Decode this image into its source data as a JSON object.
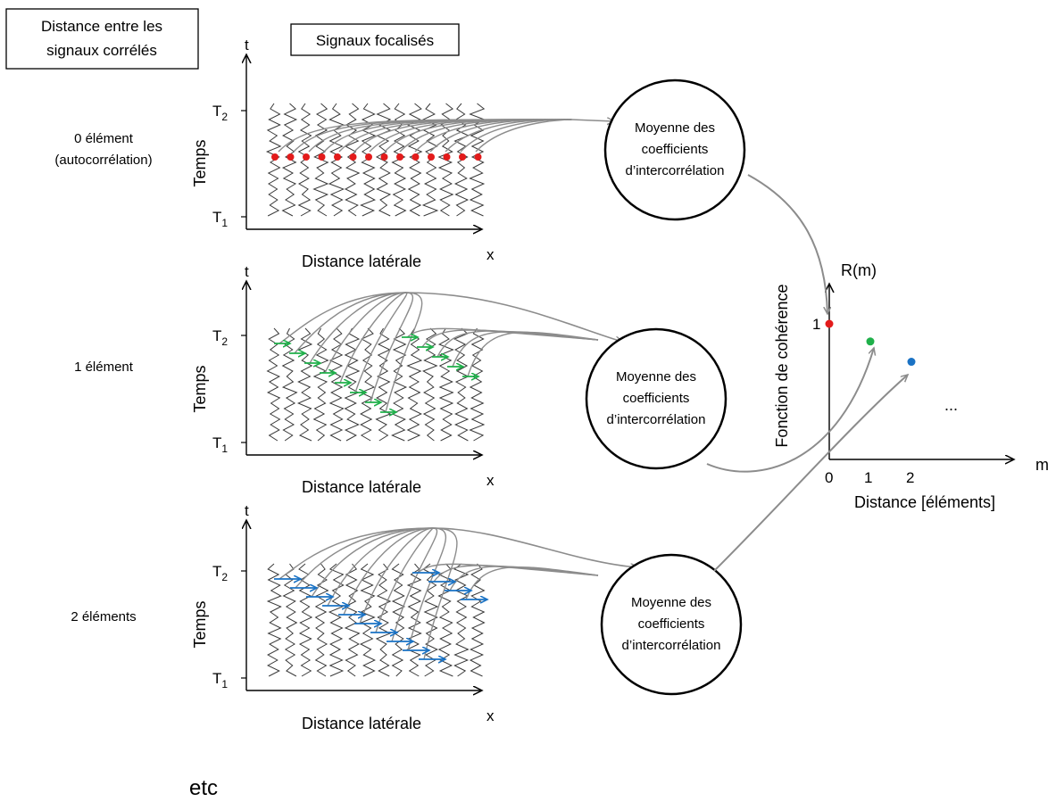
{
  "corner_box": {
    "line1": "Distance entre les",
    "line2": "signaux corrélés"
  },
  "focused_box": "Signaux focalisés",
  "colors": {
    "dot0": "#e31b1b",
    "dot1": "#1fb04a",
    "dot2": "#1a72c4",
    "curve": "#8c8c8c",
    "trace": "#3a3a3a"
  },
  "panels": [
    {
      "row_label_lines": [
        "0 élément",
        "(autocorrélation)"
      ],
      "axis_t": "t",
      "axis_x": "x",
      "ylabel": "Temps",
      "xlabel": "Distance latérale",
      "t2": "T",
      "t2_sub": "2",
      "t1": "T",
      "t1_sub": "1",
      "circle_lines": [
        "Moyenne des",
        "coefficients",
        "d’intercorrélation"
      ],
      "marker": "dots",
      "marker_color": "#e31b1b"
    },
    {
      "row_label_lines": [
        "1 élément"
      ],
      "axis_t": "t",
      "axis_x": "x",
      "ylabel": "Temps",
      "xlabel": "Distance latérale",
      "t2": "T",
      "t2_sub": "2",
      "t1": "T",
      "t1_sub": "1",
      "circle_lines": [
        "Moyenne des",
        "coefficients",
        "d’intercorrélation"
      ],
      "marker": "arrows",
      "marker_color": "#1fb04a"
    },
    {
      "row_label_lines": [
        "2 éléments"
      ],
      "axis_t": "t",
      "axis_x": "x",
      "ylabel": "Temps",
      "xlabel": "Distance latérale",
      "t2": "T",
      "t2_sub": "2",
      "t1": "T",
      "t1_sub": "1",
      "circle_lines": [
        "Moyenne des",
        "coefficients",
        "d’intercorrélation"
      ],
      "marker": "arrows",
      "marker_color": "#1a72c4"
    }
  ],
  "coherence_plot": {
    "ylabel": "Fonction de cohérence",
    "y_axis_label": "R(m)",
    "x_axis_symbol": "m",
    "xlabel": "Distance [éléments]",
    "y_tick": "1",
    "x_ticks": [
      "0",
      "1",
      "2"
    ],
    "ellipsis": "...",
    "points": [
      {
        "m": 0,
        "r": 1.0,
        "color": "#e31b1b"
      },
      {
        "m": 1,
        "r": 0.87,
        "color": "#1fb04a"
      },
      {
        "m": 2,
        "r": 0.72,
        "color": "#1a72c4"
      }
    ]
  },
  "footer": "etc"
}
